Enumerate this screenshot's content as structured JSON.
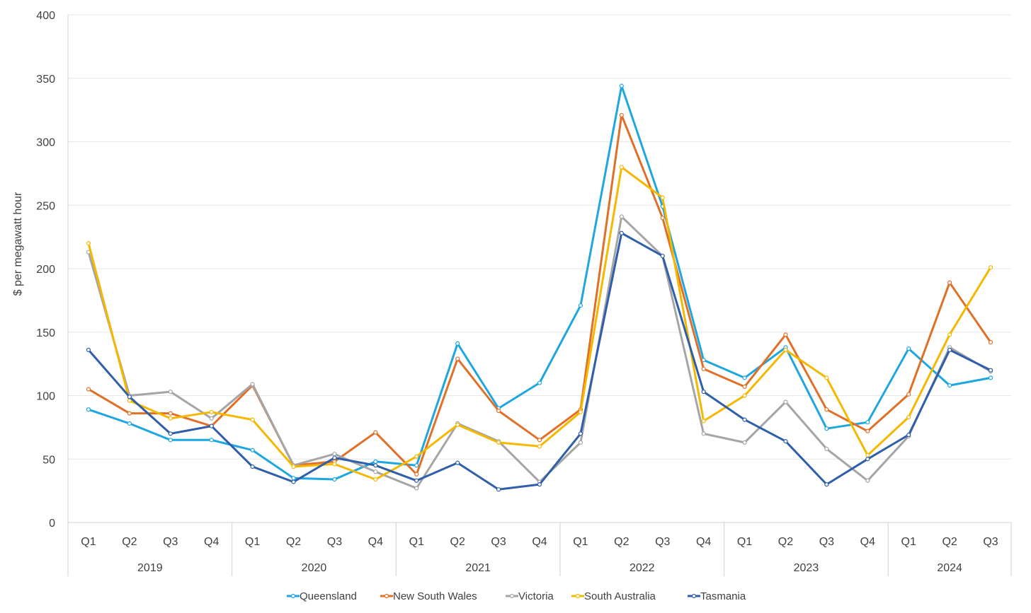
{
  "chart_data": {
    "type": "line",
    "ylabel": "$ per megawatt hour",
    "xlabel": "",
    "ylim": [
      0,
      400
    ],
    "yticks": [
      0,
      50,
      100,
      150,
      200,
      250,
      300,
      350,
      400
    ],
    "grid": true,
    "legend_position": "bottom",
    "categories": [
      "Q1",
      "Q2",
      "Q3",
      "Q4",
      "Q1",
      "Q2",
      "Q3",
      "Q4",
      "Q1",
      "Q2",
      "Q3",
      "Q4",
      "Q1",
      "Q2",
      "Q3",
      "Q4",
      "Q1",
      "Q2",
      "Q3",
      "Q4",
      "Q1",
      "Q2",
      "Q3"
    ],
    "year_groups": [
      {
        "label": "2019",
        "start": 0,
        "end": 3
      },
      {
        "label": "2020",
        "start": 4,
        "end": 7
      },
      {
        "label": "2021",
        "start": 8,
        "end": 11
      },
      {
        "label": "2022",
        "start": 12,
        "end": 15
      },
      {
        "label": "2023",
        "start": 16,
        "end": 19
      },
      {
        "label": "2024",
        "start": 20,
        "end": 22
      }
    ],
    "series": [
      {
        "name": "Queensland",
        "color": "#1ea6e0",
        "values": [
          89,
          78,
          65,
          65,
          57,
          35,
          34,
          48,
          45,
          141,
          90,
          110,
          171,
          344,
          249,
          128,
          114,
          138,
          74,
          79,
          137,
          108,
          114
        ]
      },
      {
        "name": "New South Wales",
        "color": "#e07027",
        "values": [
          105,
          86,
          86,
          76,
          108,
          45,
          48,
          71,
          38,
          129,
          88,
          65,
          89,
          321,
          240,
          121,
          107,
          148,
          89,
          72,
          101,
          189,
          142
        ]
      },
      {
        "name": "Victoria",
        "color": "#a5a5a5",
        "values": [
          213,
          100,
          103,
          82,
          109,
          45,
          54,
          40,
          27,
          78,
          64,
          32,
          63,
          241,
          210,
          70,
          63,
          95,
          58,
          33,
          68,
          138,
          119
        ]
      },
      {
        "name": "South Australia",
        "color": "#f5b800",
        "values": [
          220,
          96,
          82,
          87,
          81,
          44,
          46,
          34,
          52,
          77,
          63,
          60,
          87,
          280,
          256,
          80,
          100,
          136,
          114,
          53,
          83,
          148,
          201
        ]
      },
      {
        "name": "Tasmania",
        "color": "#2f5eaa",
        "values": [
          136,
          99,
          70,
          76,
          44,
          32,
          51,
          45,
          33,
          47,
          26,
          30,
          70,
          228,
          210,
          103,
          81,
          64,
          30,
          50,
          69,
          136,
          120
        ]
      }
    ]
  }
}
